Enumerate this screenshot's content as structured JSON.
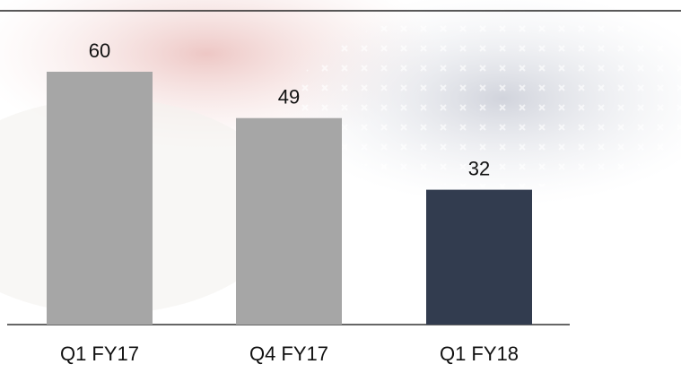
{
  "chart_data": {
    "type": "bar",
    "categories": [
      "Q1 FY17",
      "Q4 FY17",
      "Q1 FY18"
    ],
    "values": [
      60,
      49,
      32
    ],
    "colors": [
      "#a6a6a6",
      "#a6a6a6",
      "#323c4f"
    ]
  }
}
